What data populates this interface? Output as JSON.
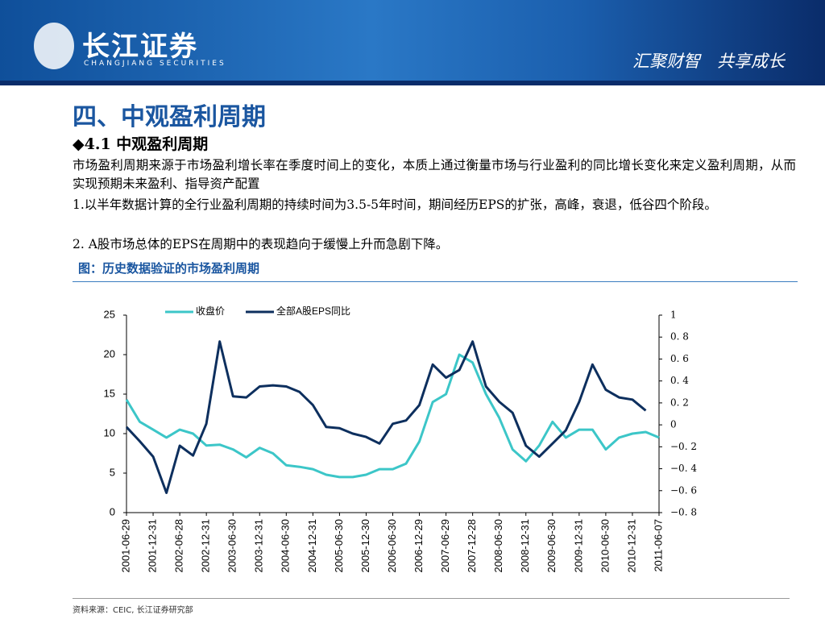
{
  "header": {
    "logo_name": "长江证券",
    "logo_subtitle": "CHANGJIANG SECURITIES",
    "slogan": "汇聚财智　共享成长"
  },
  "title": "四、中观盈利周期",
  "subtitle": "◆4.1 中观盈利周期",
  "paragraphs": [
    "市场盈利周期来源于市场盈利增长率在季度时间上的变化，本质上通过衡量市场与行业盈利的同比增长变化来定义盈利周期，从而实现预期未来盈利、指导资产配置",
    "1.以半年数据计算的全行业盈利周期的持续时间为3.5-5年时间，期间经历EPS的扩张，高峰，衰退，低谷四个阶段。",
    "2. A股市场总体的EPS在周期中的表现趋向于缓慢上升而急剧下降。"
  ],
  "caption": "图：历史数据验证的市场盈利周期",
  "source": "资料来源：CEIC, 长江证券研究部",
  "chart_data": {
    "type": "line",
    "categories": [
      "2001-06-29",
      null,
      "2001-12-31",
      null,
      "2002-06-28",
      null,
      "2002-12-31",
      null,
      "2003-06-30",
      null,
      "2003-12-31",
      null,
      "2004-06-30",
      null,
      "2004-12-31",
      null,
      "2005-06-30",
      null,
      "2005-12-30",
      null,
      "2006-06-30",
      null,
      "2006-12-29",
      null,
      "2007-06-29",
      null,
      "2007-12-28",
      null,
      "2008-06-30",
      null,
      "2008-12-31",
      null,
      "2009-06-30",
      null,
      "2009-12-31",
      null,
      "2010-06-30",
      null,
      "2010-12-31",
      null,
      "2011-06-07"
    ],
    "series": [
      {
        "name": "收盘价",
        "color": "#3cc6c8",
        "values": [
          14.3,
          11.5,
          10.5,
          9.5,
          10.5,
          10,
          8.5,
          8.6,
          8,
          7,
          8.2,
          7.5,
          6,
          5.8,
          5.5,
          4.8,
          4.5,
          4.5,
          4.8,
          5.5,
          5.5,
          6.2,
          9,
          14,
          15,
          20,
          19,
          15,
          12,
          8,
          6.5,
          8.5,
          11.5,
          9.5,
          10.5,
          10.5,
          8,
          9.5,
          10,
          10.2,
          9.5
        ]
      },
      {
        "name": "全部A股EPS同比",
        "color": "#0d2f5e",
        "axis": "y2",
        "values": [
          -0.02,
          -0.15,
          -0.29,
          -0.62,
          -0.19,
          -0.28,
          0.01,
          0.76,
          0.26,
          0.25,
          0.35,
          0.36,
          0.35,
          0.3,
          0.18,
          -0.02,
          -0.03,
          -0.08,
          -0.11,
          -0.17,
          0.01,
          0.04,
          0.18,
          0.55,
          0.43,
          0.5,
          0.76,
          0.35,
          0.21,
          0.11,
          -0.19,
          -0.29,
          -0.17,
          -0.05,
          0.21,
          0.55,
          0.32,
          0.25,
          0.23,
          0.13,
          null
        ]
      }
    ],
    "ylim": [
      0,
      25
    ],
    "yticks": [
      0,
      5,
      10,
      15,
      20,
      25
    ],
    "y2lim": [
      -0.8,
      1
    ],
    "y2ticks": [
      {
        "value": -0.8,
        "label": "−0. 8"
      },
      {
        "value": -0.6,
        "label": "−0. 6"
      },
      {
        "value": -0.4,
        "label": "−0. 4"
      },
      {
        "value": -0.2,
        "label": "−0. 2"
      },
      0,
      {
        "value": 0.2,
        "label": "0. 2"
      },
      {
        "value": 0.4,
        "label": "0. 4"
      },
      {
        "value": 0.6,
        "label": "0. 6"
      },
      {
        "value": 0.8,
        "label": "0. 8"
      },
      1
    ],
    "legend": "top"
  }
}
